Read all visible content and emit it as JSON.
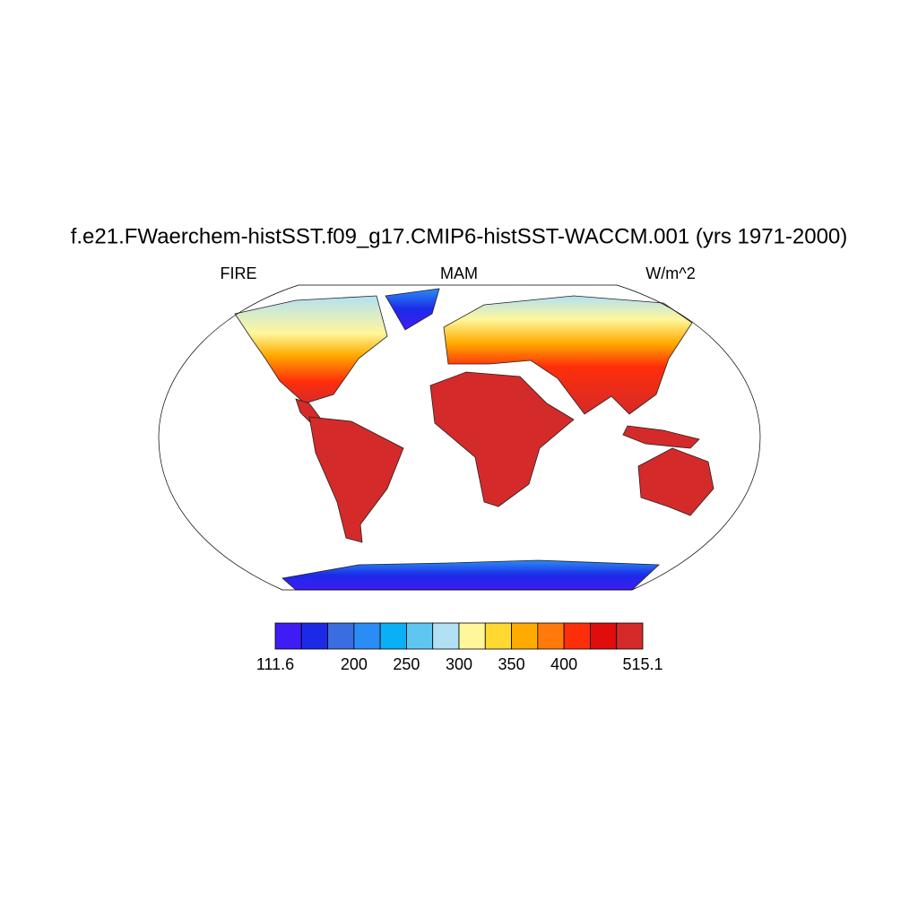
{
  "title": "f.e21.FWaerchem-histSST.f09_g17.CMIP6-histSST-WACCM.001 (yrs 1971-2000)",
  "left_string": "FIRE",
  "center_string": "MAM",
  "right_string": "W/m^2",
  "colorbar": {
    "colors": [
      "#3f1cf5",
      "#1c2ae8",
      "#3a6ee0",
      "#2a8cf5",
      "#0ab0f5",
      "#5fc6f2",
      "#b2e0f5",
      "#fff79a",
      "#ffd932",
      "#ffab00",
      "#ff7a0a",
      "#ff2e0a",
      "#e00d0d",
      "#d52a2a"
    ],
    "ticks": [
      111.6,
      200,
      250,
      300,
      350,
      400,
      515.1
    ]
  }
}
